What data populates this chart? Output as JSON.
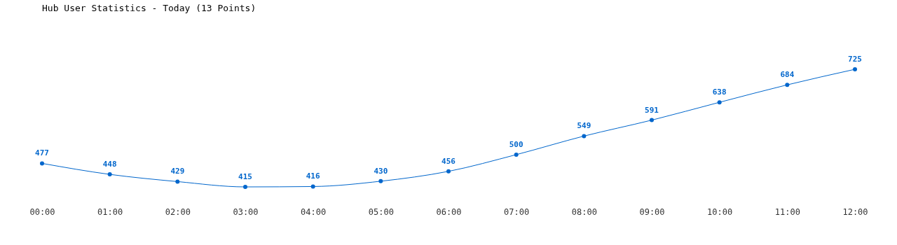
{
  "chart_data": {
    "type": "line",
    "title": "Hub User Statistics - Today (13 Points)",
    "categories": [
      "00:00",
      "01:00",
      "02:00",
      "03:00",
      "04:00",
      "05:00",
      "06:00",
      "07:00",
      "08:00",
      "09:00",
      "10:00",
      "11:00",
      "12:00"
    ],
    "values": [
      477,
      448,
      429,
      415,
      416,
      430,
      456,
      500,
      549,
      591,
      638,
      684,
      725
    ],
    "color": "#0066cc",
    "data_labels": true,
    "marker": "circle",
    "line_style": "solid",
    "grid": false
  }
}
